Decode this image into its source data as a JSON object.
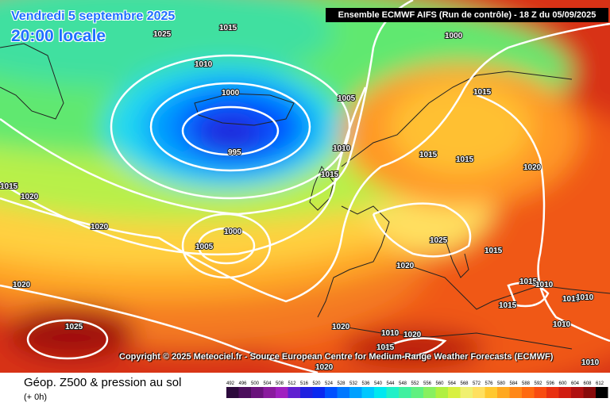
{
  "header": {
    "date": "Vendredi 5 septembre 2025",
    "local_time": "20:00 locale",
    "model_run": "Ensemble ECMWF AIFS  (Run de contrôle)  -  18 Z du 05/09/2025"
  },
  "copyright": "Copyright © 2025 Meteociel.fr - Source European Centre for Medium-Range Weather Forecasts (ECMWF)",
  "isobar_labels": [
    "1025",
    "1015",
    "1010",
    "1000",
    "995",
    "1005",
    "1010",
    "1015",
    "1000",
    "1015",
    "1015",
    "1020",
    "1020",
    "1020",
    "1000",
    "1005",
    "1020",
    "1025",
    "1015",
    "1020",
    "1015",
    "1015",
    "1010",
    "1010",
    "1015",
    "1010",
    "1015",
    "1010",
    "1020",
    "1015",
    "1020",
    "1025",
    "1010",
    "1020",
    "1010"
  ],
  "footer": {
    "field_title": "Géop. Z500 & pression au sol",
    "forecast_offset": "(+ 0h)"
  },
  "legend": {
    "ticks": [
      "492",
      "496",
      "500",
      "504",
      "508",
      "512",
      "516",
      "520",
      "524",
      "528",
      "532",
      "536",
      "540",
      "544",
      "548",
      "552",
      "556",
      "560",
      "564",
      "568",
      "572",
      "576",
      "580",
      "584",
      "588",
      "592",
      "596",
      "600",
      "604",
      "608",
      "612"
    ],
    "colors": [
      "#2c0a3c",
      "#4b0e5c",
      "#6a127c",
      "#8a1a9e",
      "#a020c0",
      "#6020d0",
      "#2020e0",
      "#0a28f0",
      "#0050ff",
      "#0078ff",
      "#00a0ff",
      "#00c8ff",
      "#00e8f0",
      "#20f0c8",
      "#40f0a0",
      "#60f080",
      "#88f060",
      "#b0f040",
      "#d8f040",
      "#f0f070",
      "#ffe060",
      "#ffc830",
      "#ffa820",
      "#ff8818",
      "#ff6a10",
      "#f84c10",
      "#e83010",
      "#d01c10",
      "#b01010",
      "#880a0a",
      "#000000"
    ]
  }
}
